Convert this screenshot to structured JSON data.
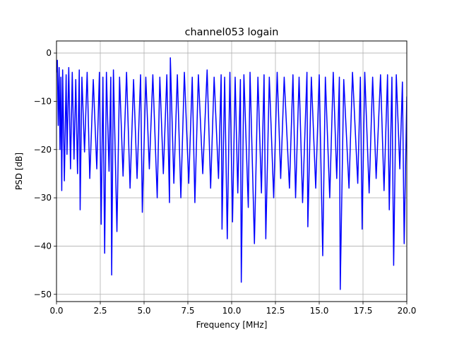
{
  "chart_data": {
    "type": "line",
    "title": "channel053 logain",
    "xlabel": "Frequency [MHz]",
    "ylabel": "PSD [dB]",
    "xlim": [
      0,
      20
    ],
    "ylim": [
      -51.5,
      2.5
    ],
    "grid": true,
    "x_ticks": [
      0,
      2.5,
      5,
      7.5,
      10,
      12.5,
      15,
      17.5,
      20
    ],
    "x_tick_labels": [
      "0.0",
      "2.5",
      "5.0",
      "7.5",
      "10.0",
      "12.5",
      "15.0",
      "17.5",
      "20.0"
    ],
    "y_ticks": [
      0,
      -10,
      -20,
      -30,
      -40,
      -50
    ],
    "y_tick_labels": [
      "0",
      "−10",
      "−20",
      "−30",
      "−40",
      "−50"
    ],
    "series": [
      {
        "color": "#0000ff",
        "points": [
          [
            0.0,
            -4.0
          ],
          [
            0.05,
            -1.5
          ],
          [
            0.1,
            -15.0
          ],
          [
            0.15,
            -3.0
          ],
          [
            0.2,
            -20.0
          ],
          [
            0.25,
            -5.0
          ],
          [
            0.3,
            -28.5
          ],
          [
            0.35,
            -3.5
          ],
          [
            0.45,
            -26.5
          ],
          [
            0.55,
            -4.5
          ],
          [
            0.6,
            -21.0
          ],
          [
            0.7,
            -3.0
          ],
          [
            0.8,
            -24.0
          ],
          [
            0.9,
            -4.0
          ],
          [
            1.0,
            -22.0
          ],
          [
            1.1,
            -5.5
          ],
          [
            1.2,
            -25.0
          ],
          [
            1.3,
            -3.5
          ],
          [
            1.35,
            -32.5
          ],
          [
            1.45,
            -5.0
          ],
          [
            1.6,
            -20.5
          ],
          [
            1.75,
            -4.0
          ],
          [
            1.9,
            -26.0
          ],
          [
            2.1,
            -5.5
          ],
          [
            2.3,
            -24.0
          ],
          [
            2.45,
            -4.0
          ],
          [
            2.55,
            -35.5
          ],
          [
            2.65,
            -5.0
          ],
          [
            2.75,
            -41.5
          ],
          [
            2.85,
            -4.0
          ],
          [
            3.0,
            -24.5
          ],
          [
            3.1,
            -5.0
          ],
          [
            3.15,
            -46.0
          ],
          [
            3.25,
            -3.5
          ],
          [
            3.45,
            -37.0
          ],
          [
            3.6,
            -5.0
          ],
          [
            3.8,
            -25.5
          ],
          [
            4.0,
            -4.0
          ],
          [
            4.2,
            -28.0
          ],
          [
            4.4,
            -5.5
          ],
          [
            4.6,
            -26.0
          ],
          [
            4.8,
            -4.5
          ],
          [
            4.9,
            -33.0
          ],
          [
            5.1,
            -5.0
          ],
          [
            5.3,
            -24.0
          ],
          [
            5.5,
            -4.5
          ],
          [
            5.75,
            -30.0
          ],
          [
            5.9,
            -5.0
          ],
          [
            6.1,
            -25.0
          ],
          [
            6.3,
            -4.5
          ],
          [
            6.45,
            -31.0
          ],
          [
            6.5,
            -1.0
          ],
          [
            6.7,
            -27.0
          ],
          [
            6.9,
            -4.5
          ],
          [
            7.1,
            -30.0
          ],
          [
            7.3,
            -4.0
          ],
          [
            7.55,
            -27.0
          ],
          [
            7.75,
            -5.0
          ],
          [
            7.9,
            -31.0
          ],
          [
            8.1,
            -4.5
          ],
          [
            8.35,
            -25.0
          ],
          [
            8.6,
            -3.5
          ],
          [
            8.8,
            -28.0
          ],
          [
            9.0,
            -5.0
          ],
          [
            9.25,
            -26.0
          ],
          [
            9.4,
            -4.5
          ],
          [
            9.45,
            -36.5
          ],
          [
            9.6,
            -5.0
          ],
          [
            9.75,
            -38.5
          ],
          [
            9.9,
            -4.0
          ],
          [
            10.05,
            -35.0
          ],
          [
            10.2,
            -5.0
          ],
          [
            10.35,
            -29.0
          ],
          [
            10.5,
            -5.5
          ],
          [
            10.55,
            -47.5
          ],
          [
            10.7,
            -4.5
          ],
          [
            10.95,
            -32.0
          ],
          [
            11.05,
            -4.0
          ],
          [
            11.3,
            -39.5
          ],
          [
            11.5,
            -5.0
          ],
          [
            11.7,
            -29.0
          ],
          [
            11.85,
            -4.5
          ],
          [
            11.95,
            -38.5
          ],
          [
            12.15,
            -5.0
          ],
          [
            12.4,
            -30.0
          ],
          [
            12.6,
            -4.0
          ],
          [
            12.8,
            -26.0
          ],
          [
            13.0,
            -5.0
          ],
          [
            13.3,
            -28.0
          ],
          [
            13.5,
            -4.5
          ],
          [
            13.65,
            -30.0
          ],
          [
            13.85,
            -5.0
          ],
          [
            14.05,
            -31.0
          ],
          [
            14.3,
            -4.0
          ],
          [
            14.35,
            -36.0
          ],
          [
            14.55,
            -5.0
          ],
          [
            14.8,
            -28.0
          ],
          [
            15.0,
            -4.5
          ],
          [
            15.2,
            -42.0
          ],
          [
            15.35,
            -5.0
          ],
          [
            15.6,
            -30.0
          ],
          [
            15.8,
            -4.0
          ],
          [
            16.0,
            -26.0
          ],
          [
            16.15,
            -5.0
          ],
          [
            16.2,
            -49.0
          ],
          [
            16.4,
            -5.5
          ],
          [
            16.7,
            -28.0
          ],
          [
            16.9,
            -4.0
          ],
          [
            17.2,
            -27.0
          ],
          [
            17.35,
            -5.0
          ],
          [
            17.45,
            -36.5
          ],
          [
            17.6,
            -4.0
          ],
          [
            17.85,
            -29.0
          ],
          [
            18.05,
            -5.0
          ],
          [
            18.25,
            -26.0
          ],
          [
            18.5,
            -4.5
          ],
          [
            18.7,
            -28.5
          ],
          [
            18.9,
            -4.5
          ],
          [
            19.0,
            -32.5
          ],
          [
            19.15,
            -5.0
          ],
          [
            19.25,
            -44.0
          ],
          [
            19.4,
            -4.5
          ],
          [
            19.6,
            -24.0
          ],
          [
            19.75,
            -6.0
          ],
          [
            19.85,
            -39.5
          ],
          [
            20.0,
            -9.0
          ]
        ]
      }
    ]
  }
}
